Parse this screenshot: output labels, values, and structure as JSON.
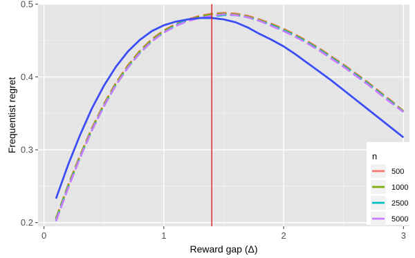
{
  "chart_data": {
    "type": "line",
    "xlabel": "Reward gap (Δ)",
    "ylabel": "Frequentist regret",
    "xlim": [
      -0.05,
      3.05
    ],
    "ylim": [
      0.195,
      0.5
    ],
    "x_ticks": [
      0,
      1,
      2,
      3
    ],
    "x_tick_labels": [
      "0",
      "1",
      "2",
      "3"
    ],
    "y_ticks": [
      0.2,
      0.3,
      0.4,
      0.5
    ],
    "y_tick_labels": [
      "0.2",
      "0.3",
      "0.4",
      "0.5"
    ],
    "grid": true,
    "background": "#e5e5e5",
    "vline": {
      "x": 1.4,
      "color": "#e41a1c"
    },
    "legend": {
      "title": "n",
      "placement": "right"
    },
    "series": [
      {
        "name": "500",
        "color": "#f8766d",
        "dash": "dashed",
        "x": [
          0.1,
          0.2,
          0.3,
          0.4,
          0.5,
          0.6,
          0.7,
          0.8,
          0.9,
          1.0,
          1.1,
          1.2,
          1.3,
          1.4,
          1.5,
          1.6,
          1.7,
          1.8,
          1.9,
          2.0,
          2.1,
          2.2,
          2.3,
          2.4,
          2.5,
          2.6,
          2.7,
          2.8,
          2.9,
          3.0
        ],
        "y": [
          0.206,
          0.251,
          0.292,
          0.33,
          0.363,
          0.392,
          0.416,
          0.436,
          0.452,
          0.464,
          0.473,
          0.479,
          0.484,
          0.487,
          0.488,
          0.487,
          0.484,
          0.479,
          0.473,
          0.466,
          0.458,
          0.449,
          0.439,
          0.428,
          0.417,
          0.405,
          0.393,
          0.38,
          0.367,
          0.353
        ]
      },
      {
        "name": "1000",
        "color": "#7cae00",
        "dash": "dashed",
        "x": [
          0.1,
          0.2,
          0.3,
          0.4,
          0.5,
          0.6,
          0.7,
          0.8,
          0.9,
          1.0,
          1.1,
          1.2,
          1.3,
          1.4,
          1.5,
          1.6,
          1.7,
          1.8,
          1.9,
          2.0,
          2.1,
          2.2,
          2.3,
          2.4,
          2.5,
          2.6,
          2.7,
          2.8,
          2.9,
          3.0
        ],
        "y": [
          0.205,
          0.25,
          0.291,
          0.329,
          0.362,
          0.391,
          0.415,
          0.435,
          0.451,
          0.463,
          0.472,
          0.478,
          0.483,
          0.486,
          0.487,
          0.486,
          0.483,
          0.478,
          0.472,
          0.465,
          0.457,
          0.448,
          0.438,
          0.427,
          0.416,
          0.404,
          0.392,
          0.379,
          0.366,
          0.353
        ]
      },
      {
        "name": "2500",
        "color": "#00bfc4",
        "dash": "dashed",
        "x": [
          0.1,
          0.2,
          0.3,
          0.4,
          0.5,
          0.6,
          0.7,
          0.8,
          0.9,
          1.0,
          1.1,
          1.2,
          1.3,
          1.4,
          1.5,
          1.6,
          1.7,
          1.8,
          1.9,
          2.0,
          2.1,
          2.2,
          2.3,
          2.4,
          2.5,
          2.6,
          2.7,
          2.8,
          2.9,
          3.0
        ],
        "y": [
          0.203,
          0.248,
          0.289,
          0.327,
          0.36,
          0.389,
          0.413,
          0.433,
          0.449,
          0.461,
          0.471,
          0.478,
          0.481,
          0.483,
          0.485,
          0.485,
          0.482,
          0.477,
          0.471,
          0.464,
          0.456,
          0.447,
          0.437,
          0.426,
          0.415,
          0.403,
          0.391,
          0.378,
          0.365,
          0.352
        ]
      },
      {
        "name": "5000",
        "color": "#c77cff",
        "dash": "dashed",
        "x": [
          0.1,
          0.2,
          0.3,
          0.4,
          0.5,
          0.6,
          0.7,
          0.8,
          0.9,
          1.0,
          1.1,
          1.2,
          1.3,
          1.4,
          1.5,
          1.6,
          1.7,
          1.8,
          1.9,
          2.0,
          2.1,
          2.2,
          2.3,
          2.4,
          2.5,
          2.6,
          2.7,
          2.8,
          2.9,
          3.0
        ],
        "y": [
          0.202,
          0.247,
          0.289,
          0.327,
          0.36,
          0.389,
          0.413,
          0.433,
          0.449,
          0.461,
          0.47,
          0.477,
          0.481,
          0.484,
          0.486,
          0.485,
          0.482,
          0.477,
          0.47,
          0.463,
          0.455,
          0.446,
          0.436,
          0.425,
          0.414,
          0.402,
          0.39,
          0.377,
          0.364,
          0.352
        ]
      },
      {
        "name": "",
        "color": "#3b4ef5",
        "dash": "solid",
        "x": [
          0.1,
          0.2,
          0.3,
          0.4,
          0.5,
          0.6,
          0.7,
          0.8,
          0.9,
          1.0,
          1.1,
          1.2,
          1.3,
          1.4,
          1.5,
          1.6,
          1.7,
          1.8,
          1.9,
          2.0,
          2.1,
          2.2,
          2.3,
          2.4,
          2.5,
          2.6,
          2.7,
          2.8,
          2.9,
          3.0
        ],
        "y": [
          0.233,
          0.279,
          0.32,
          0.357,
          0.388,
          0.414,
          0.435,
          0.451,
          0.463,
          0.471,
          0.476,
          0.479,
          0.481,
          0.481,
          0.479,
          0.475,
          0.468,
          0.459,
          0.451,
          0.442,
          0.431,
          0.419,
          0.407,
          0.395,
          0.382,
          0.369,
          0.356,
          0.343,
          0.33,
          0.317
        ]
      }
    ]
  }
}
